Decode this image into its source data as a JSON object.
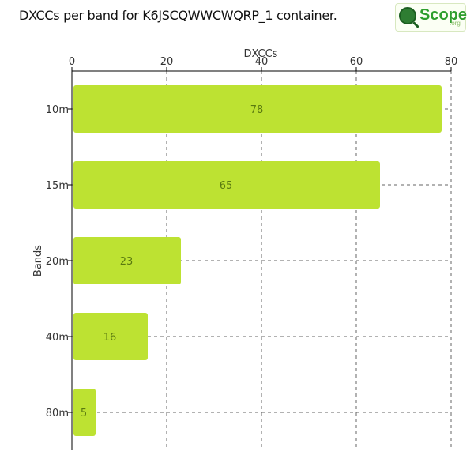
{
  "title": "DXCCs per band for K6JSCQWWCWQRP_1 container.",
  "logo": {
    "word": "Scope",
    "org": ".org"
  },
  "chart_data": {
    "type": "bar",
    "orientation": "horizontal",
    "categories": [
      "10m",
      "15m",
      "20m",
      "40m",
      "80m"
    ],
    "values": [
      78,
      65,
      23,
      16,
      5
    ],
    "xlabel": "DXCCs",
    "ylabel": "Bands",
    "xlim": [
      0,
      80
    ],
    "xticks": [
      0,
      20,
      40,
      60,
      80
    ],
    "x_axis_position": "top",
    "grid": true,
    "data_labels": true,
    "bar_color": "#bde232",
    "label_color": "#5a7a10"
  }
}
